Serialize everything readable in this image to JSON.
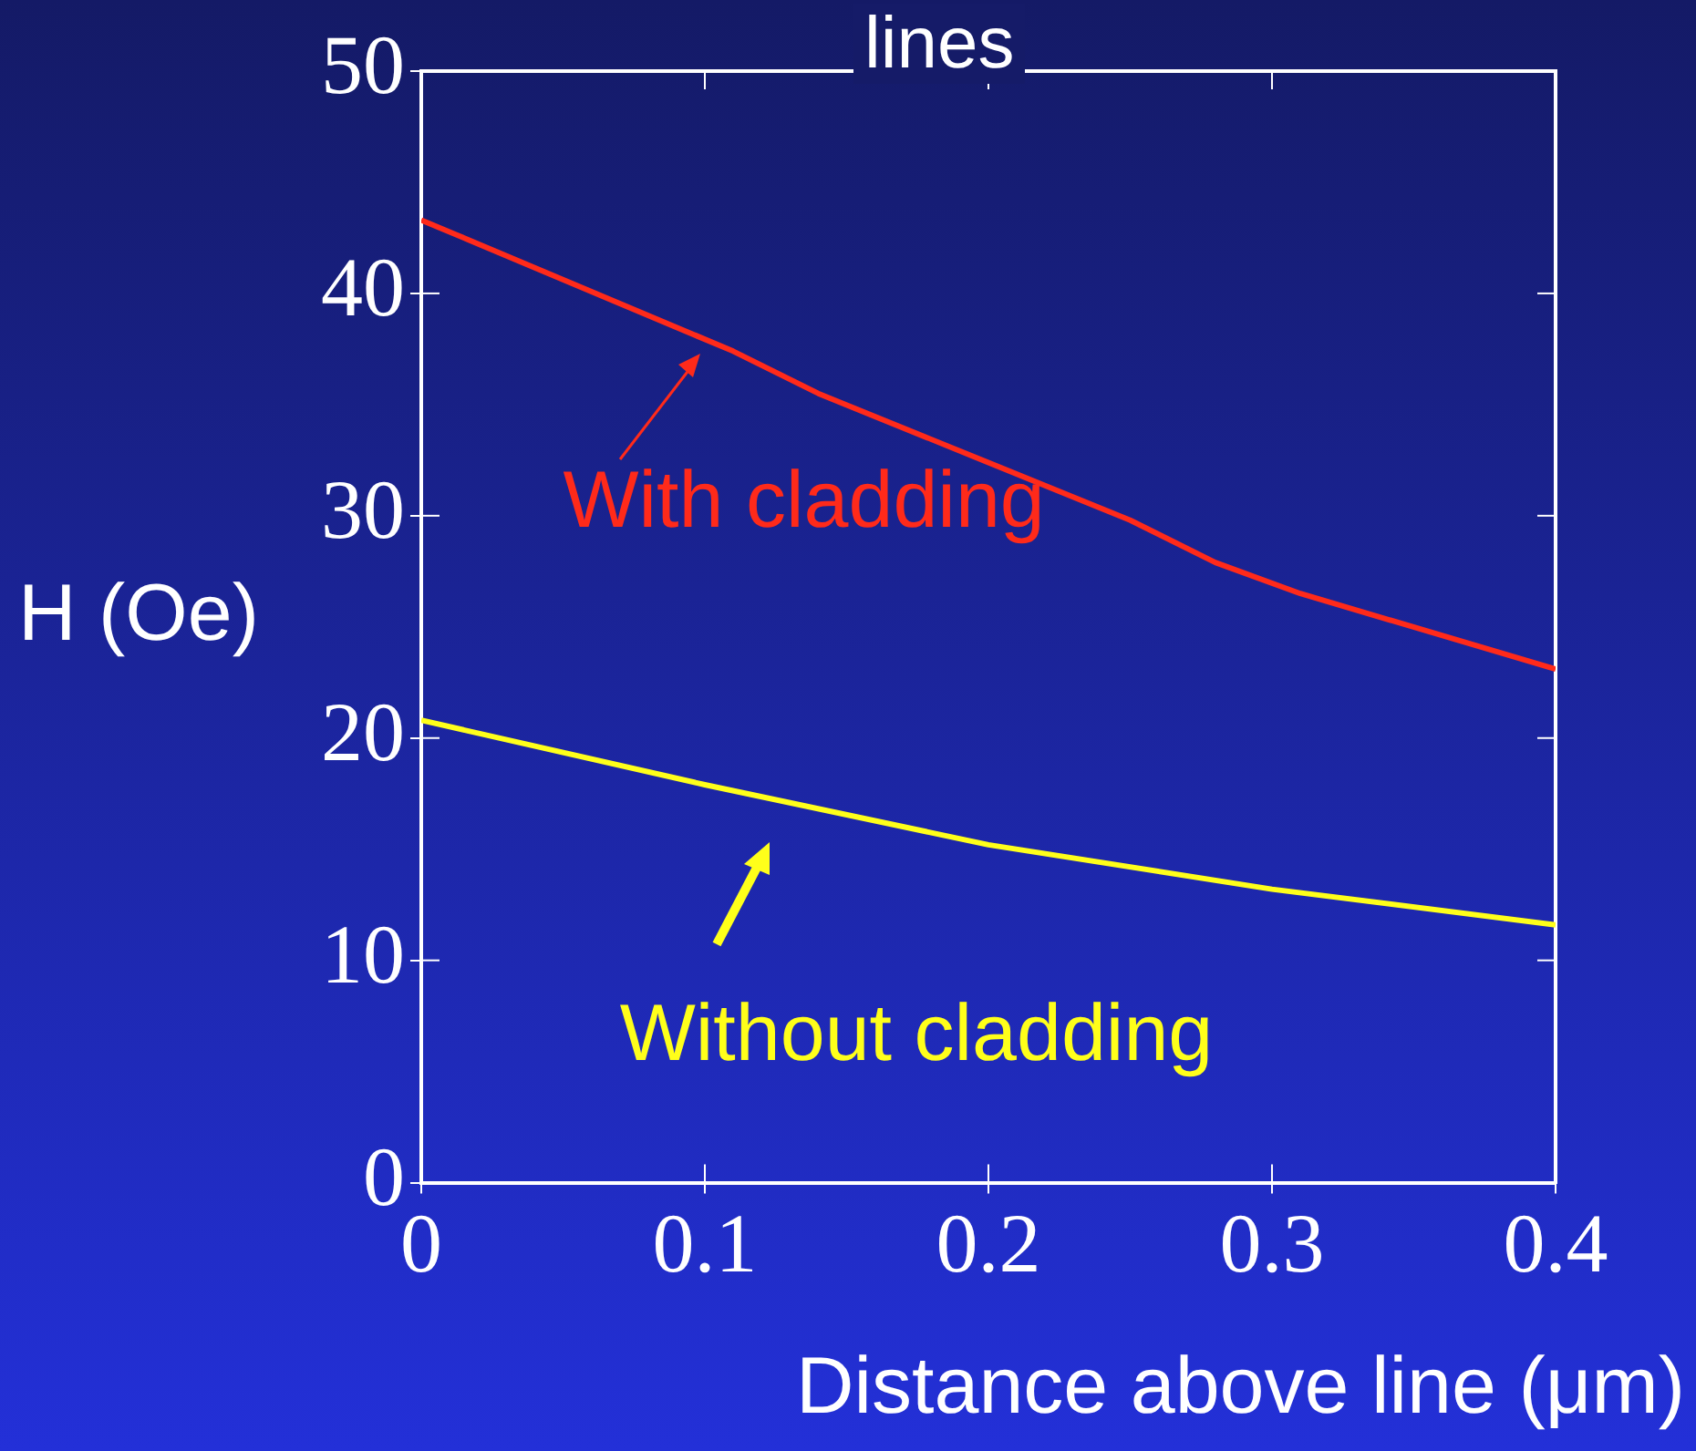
{
  "chart_data": {
    "type": "line",
    "title": "lines",
    "xlabel": "Distance above line (μm)",
    "ylabel": "H (Oe)",
    "xlim": [
      0,
      0.4
    ],
    "xticks": [
      0,
      0.1,
      0.2,
      0.3,
      0.4
    ],
    "ylim": [
      0,
      50
    ],
    "yticks": [
      0,
      10,
      20,
      30,
      40,
      50
    ],
    "grid": false,
    "legend": "center",
    "marker": "none",
    "line_style": "solid",
    "series": [
      {
        "name": "With cladding",
        "color": "#ff2a1a",
        "x": [
          0,
          0.11,
          0.14,
          0.25,
          0.28,
          0.31,
          0.4
        ],
        "values": [
          43.3,
          37.4,
          35.5,
          29.8,
          27.9,
          26.5,
          23.1
        ]
      },
      {
        "name": "Without cladding",
        "color": "#ffff1a",
        "x": [
          0,
          0.1,
          0.2,
          0.3,
          0.4
        ],
        "values": [
          20.8,
          17.9,
          15.2,
          13.2,
          11.6
        ]
      }
    ]
  }
}
